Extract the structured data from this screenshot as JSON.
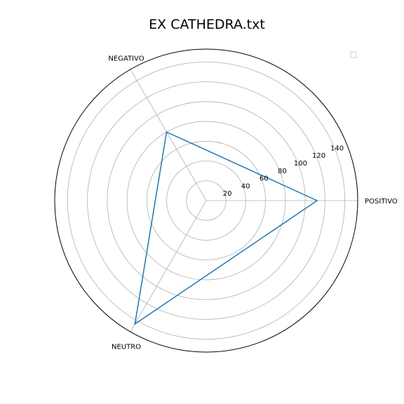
{
  "chart_data": {
    "type": "radar",
    "title": "EX CATHEDRA.txt",
    "categories": [
      "POSITIVO",
      "NEGATIVO",
      "NEUTRO"
    ],
    "series": [
      {
        "values": [
          112,
          80,
          144
        ],
        "color": "#1f77b4"
      }
    ],
    "radial_ticks": [
      20,
      40,
      60,
      80,
      100,
      120,
      140
    ],
    "rlim": [
      0,
      153
    ],
    "grid": true,
    "legend": "top-right, empty"
  }
}
